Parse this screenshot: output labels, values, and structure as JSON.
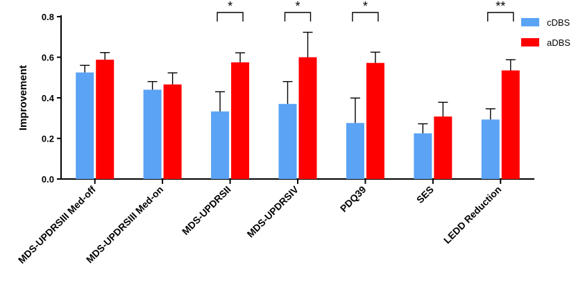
{
  "chart_data": {
    "type": "bar",
    "ylabel": "Improvement",
    "ylim": [
      0,
      0.8
    ],
    "yticks": [
      "0.0",
      "0.2",
      "0.4",
      "0.6",
      "0.8"
    ],
    "ytick_values": [
      0,
      0.2,
      0.4,
      0.6,
      0.8
    ],
    "categories": [
      "MDS-UPDRSIII Med-off",
      "MDS-UPDRSIII Med-on",
      "MDS-UPDRSII",
      "MDS-UPDRSIV",
      "PDQ39",
      "SES",
      "LEDD Reduction"
    ],
    "series": [
      {
        "name": "cDBS",
        "color": "#5aa3f5",
        "values": [
          0.525,
          0.44,
          0.333,
          0.37,
          0.276,
          0.225,
          0.293
        ],
        "errors": [
          0.035,
          0.04,
          0.097,
          0.11,
          0.123,
          0.047,
          0.053
        ]
      },
      {
        "name": "aDBS",
        "color": "#ff0000",
        "values": [
          0.588,
          0.466,
          0.575,
          0.6,
          0.572,
          0.308,
          0.535
        ],
        "errors": [
          0.035,
          0.057,
          0.047,
          0.123,
          0.053,
          0.07,
          0.053
        ]
      }
    ],
    "significance": [
      {
        "category_index": 2,
        "label": "*"
      },
      {
        "category_index": 3,
        "label": "*"
      },
      {
        "category_index": 4,
        "label": "*"
      },
      {
        "category_index": 6,
        "label": "**"
      }
    ],
    "legend_position": "top-right"
  }
}
